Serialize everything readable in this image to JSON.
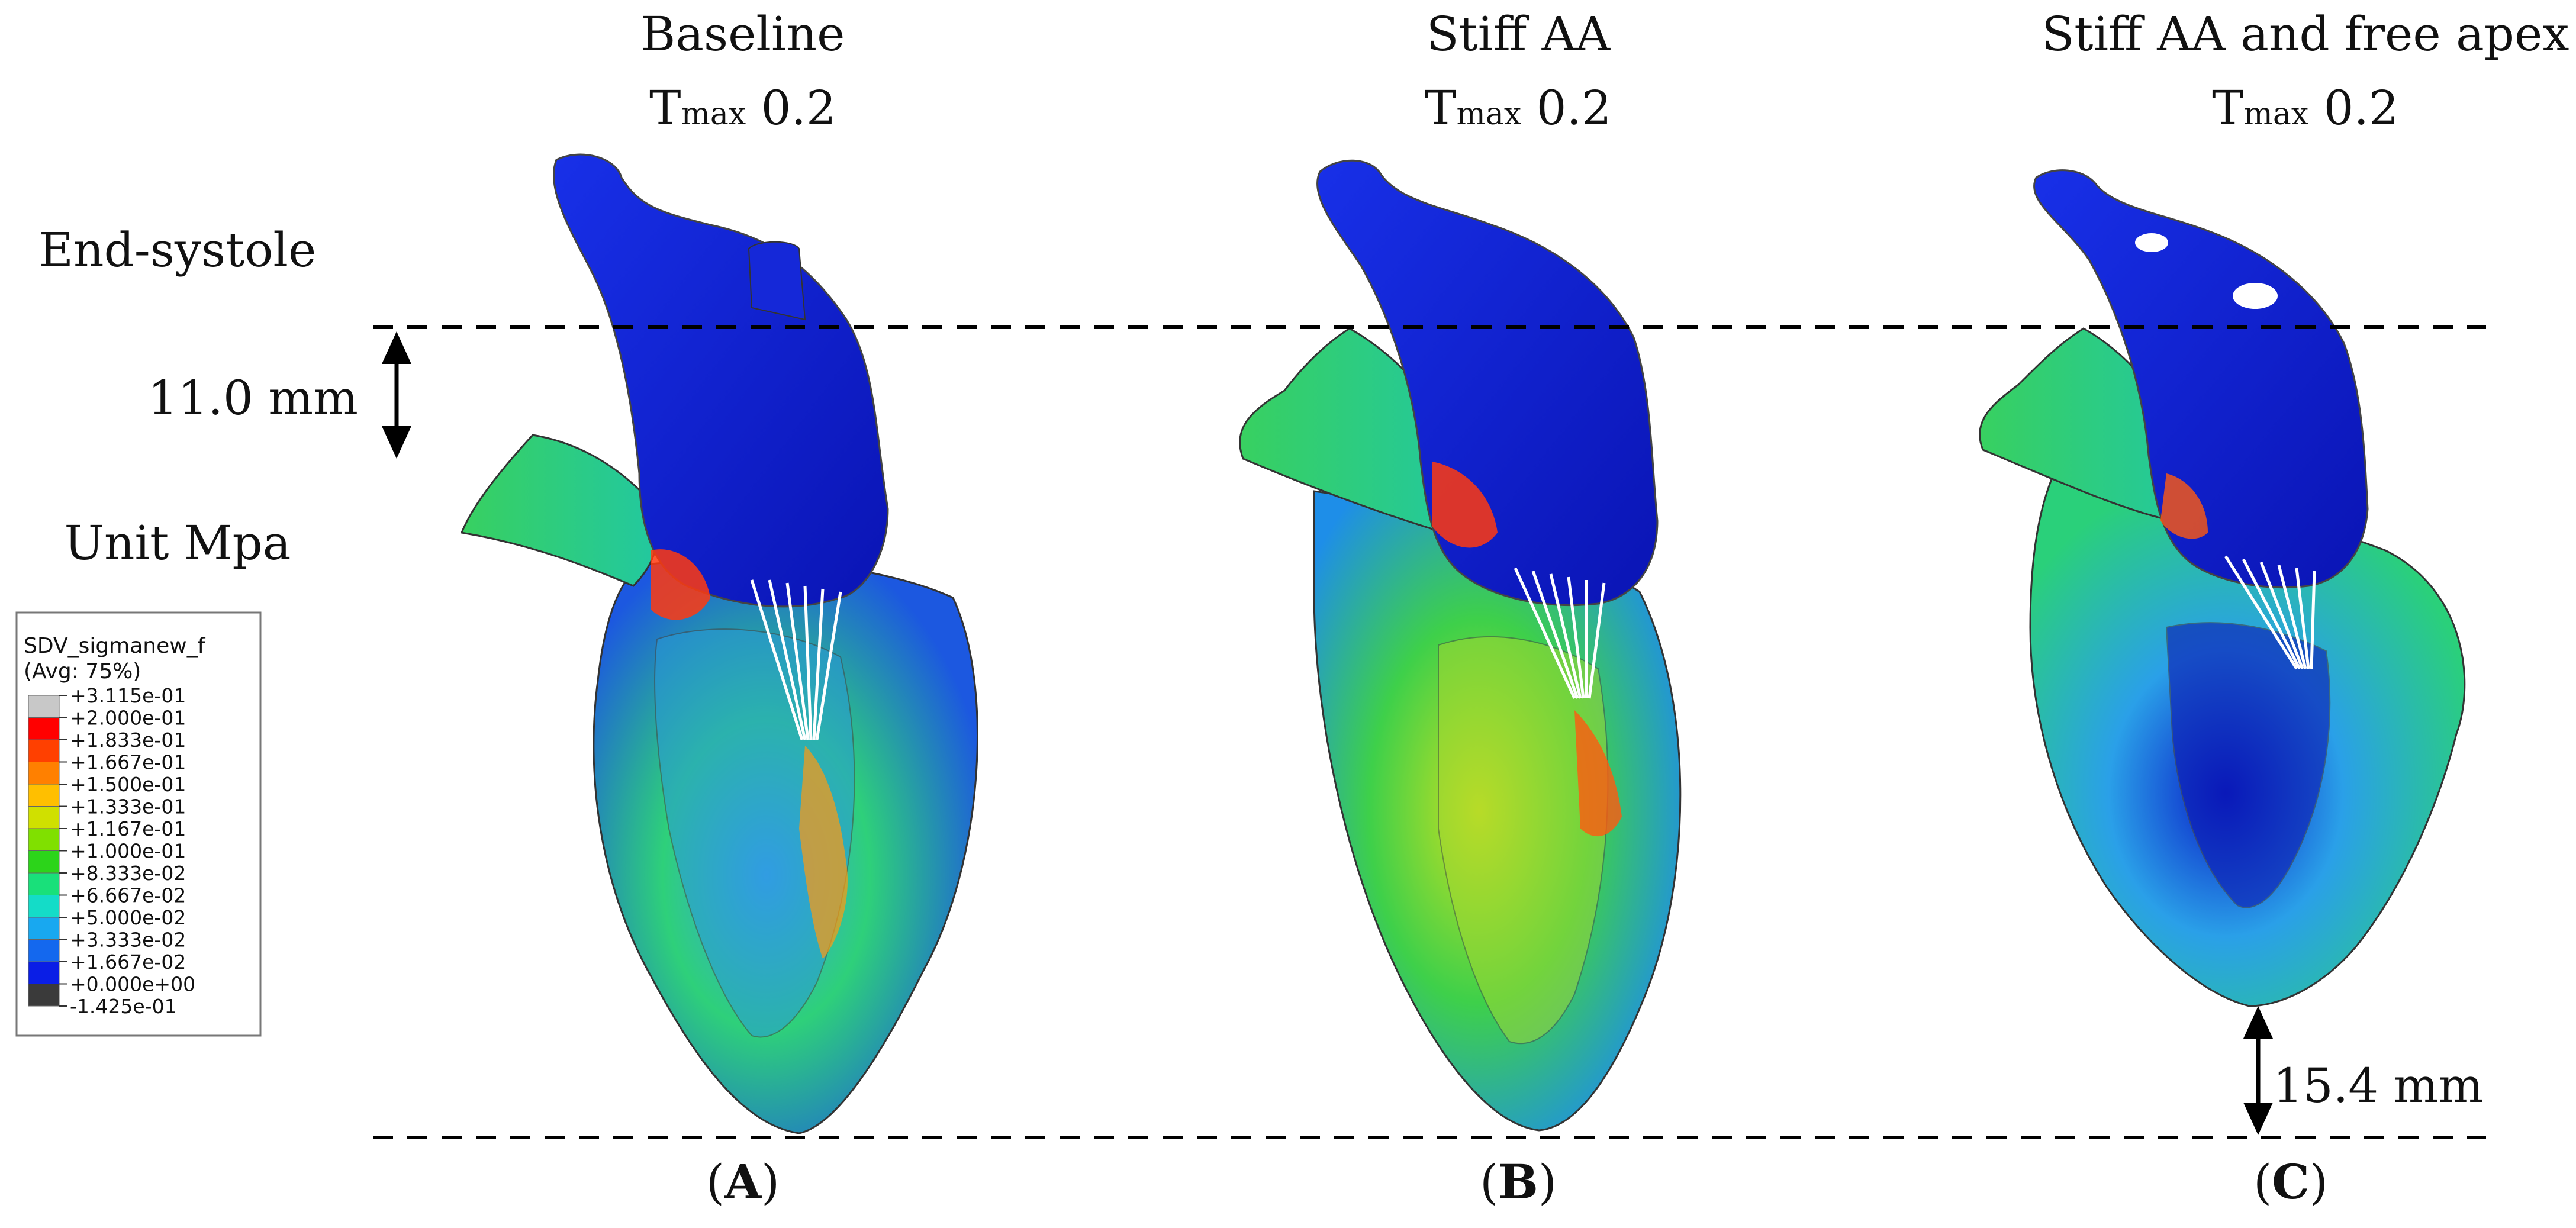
{
  "panels": [
    {
      "title": "Baseline",
      "subtitle_main": "T",
      "subtitle_sub": "max",
      "subtitle_value": " 0.2",
      "label_open": "(",
      "label_letter": "A",
      "label_close": ")"
    },
    {
      "title": "Stiff AA",
      "subtitle_main": "T",
      "subtitle_sub": "max",
      "subtitle_value": " 0.2",
      "label_open": "(",
      "label_letter": "B",
      "label_close": ")"
    },
    {
      "title": "Stiff AA and free apex",
      "subtitle_main": "T",
      "subtitle_sub": "max",
      "subtitle_value": " 0.2",
      "label_open": "(",
      "label_letter": "C",
      "label_close": ")"
    }
  ],
  "phase_label": "End-systole",
  "unit_label": "Unit Mpa",
  "measurements": {
    "top": "11.0 mm",
    "bottom": "15.4 mm"
  },
  "legend": {
    "title": "SDV_sigmanew_f",
    "subtitle": "(Avg: 75%)",
    "entries": [
      {
        "label": "+3.115e-01",
        "color": "#c8c8c8"
      },
      {
        "label": "+2.000e-01",
        "color": "#ff0000"
      },
      {
        "label": "+1.833e-01",
        "color": "#ff4000"
      },
      {
        "label": "+1.667e-01",
        "color": "#ff8000"
      },
      {
        "label": "+1.500e-01",
        "color": "#ffbf00"
      },
      {
        "label": "+1.333e-01",
        "color": "#d0e000"
      },
      {
        "label": "+1.167e-01",
        "color": "#80e000"
      },
      {
        "label": "+1.000e-01",
        "color": "#2cd41a"
      },
      {
        "label": "+8.333e-02",
        "color": "#19e07a"
      },
      {
        "label": "+6.667e-02",
        "color": "#14dcc8"
      },
      {
        "label": "+5.000e-02",
        "color": "#18a8f0"
      },
      {
        "label": "+3.333e-02",
        "color": "#1468ee"
      },
      {
        "label": "+1.667e-02",
        "color": "#0a1ee6"
      },
      {
        "label": "+0.000e+00",
        "color": "#3a3a3a"
      },
      {
        "label": "-1.425e-01",
        "color": ""
      }
    ]
  },
  "colors": {
    "aorta": "#1020d8",
    "aorta_dark": "#0a12a8",
    "tissue_green": "#3ccc3c",
    "tissue_cyan": "#22c8d8",
    "tissue_blue": "#2860e8",
    "hot_red": "#ff3a10",
    "hot_orange": "#ff9a10",
    "hot_yellow": "#e6e000",
    "chordae": "#ffffff"
  }
}
